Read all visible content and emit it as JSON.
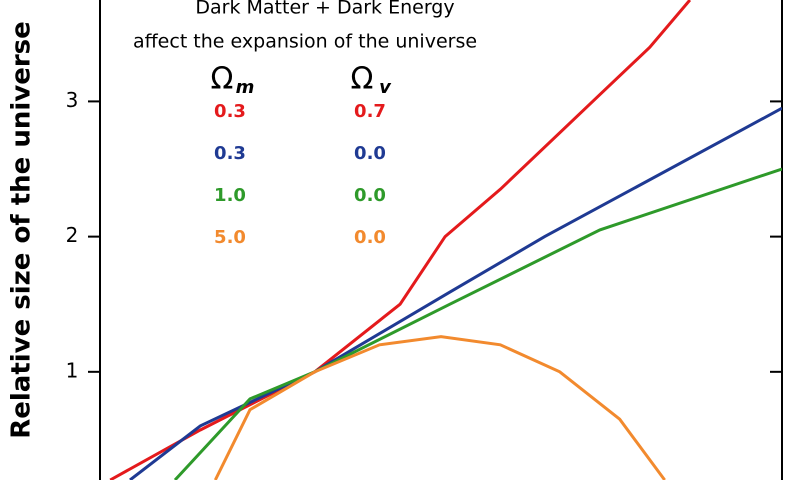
{
  "chart_data": {
    "type": "line",
    "title": [
      "Dark Matter + Dark Energy",
      "affect the expansion of the universe"
    ],
    "y_label": "Relative size of the universe",
    "xlim": [
      0,
      100
    ],
    "ylim": [
      0.2,
      3.75
    ],
    "yticks": [
      1,
      2,
      3
    ],
    "legend_headers": [
      {
        "symbol": "Ω",
        "sub": "m"
      },
      {
        "symbol": "Ω",
        "sub": "v"
      }
    ],
    "series": [
      {
        "omega_m": "0.3",
        "omega_v": "0.7",
        "color": "#e41a1c",
        "x": [
          1.5,
          14.7,
          31.5,
          44,
          50.6,
          58.7,
          73.3,
          80.6,
          86.5
        ],
        "values": [
          0.2,
          0.57,
          1.0,
          1.5,
          2.0,
          2.35,
          3.05,
          3.4,
          3.75
        ]
      },
      {
        "omega_m": "0.3",
        "omega_v": "0.0",
        "color": "#1f3a93",
        "x": [
          4.4,
          14.7,
          31.5,
          51.3,
          65.2,
          100
        ],
        "values": [
          0.2,
          0.6,
          1.0,
          1.59,
          2.0,
          2.95
        ]
      },
      {
        "omega_m": "1.0",
        "omega_v": "0.0",
        "color": "#2e9a2a",
        "x": [
          11,
          22,
          31.5,
          51.3,
          73.3,
          100
        ],
        "values": [
          0.2,
          0.8,
          1.0,
          1.5,
          2.05,
          2.5
        ]
      },
      {
        "omega_m": "5.0",
        "omega_v": "0.0",
        "color": "#f28a2e",
        "x": [
          16.9,
          22,
          31.5,
          41,
          50,
          58.7,
          67.4,
          76.2,
          82.8
        ],
        "values": [
          0.2,
          0.72,
          1.0,
          1.2,
          1.26,
          1.2,
          1.0,
          0.65,
          0.2
        ]
      }
    ]
  }
}
